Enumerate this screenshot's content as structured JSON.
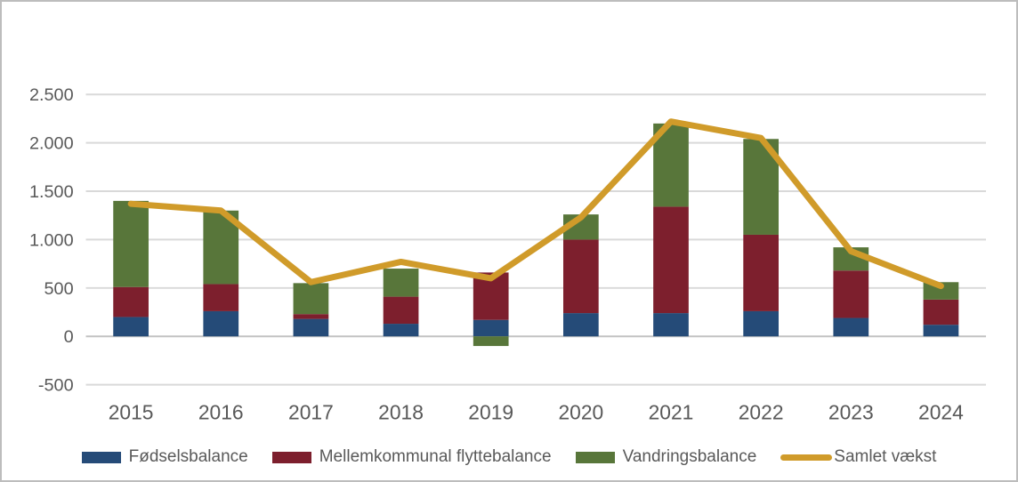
{
  "chart_data": {
    "type": "bar",
    "subtype": "stacked-column-with-line-overlay",
    "title": "",
    "xlabel": "",
    "ylabel": "",
    "categories": [
      "2015",
      "2016",
      "2017",
      "2018",
      "2019",
      "2020",
      "2021",
      "2022",
      "2023",
      "2024"
    ],
    "series": [
      {
        "name": "Fødselsbalance",
        "kind": "bar",
        "color": "#254b78",
        "values": [
          200,
          260,
          180,
          130,
          170,
          240,
          240,
          260,
          190,
          120
        ]
      },
      {
        "name": "Mellemkommunal flyttebalance",
        "kind": "bar",
        "color": "#7d1f2d",
        "values": [
          310,
          280,
          50,
          280,
          490,
          760,
          1100,
          790,
          490,
          260
        ]
      },
      {
        "name": "Vandringsbalance",
        "kind": "bar",
        "color": "#58763a",
        "values": [
          890,
          760,
          320,
          290,
          -100,
          260,
          860,
          990,
          240,
          180
        ]
      },
      {
        "name": "Samlet vækst",
        "kind": "line",
        "color": "#d09b2a",
        "values": [
          1370,
          1300,
          560,
          770,
          600,
          1230,
          2220,
          2050,
          880,
          520
        ]
      }
    ],
    "stack_totals": [
      1400,
      1300,
      550,
      700,
      560,
      1260,
      2200,
      2040,
      920,
      560
    ],
    "y_axis": {
      "min": -500,
      "max": 2500,
      "step": 500,
      "tick_labels": [
        "-500",
        "0",
        "500",
        "1.000",
        "1.500",
        "2.000",
        "2.500"
      ]
    },
    "grid": true,
    "gridline_color": "#d9d9d9",
    "axis_text_color": "#595959",
    "legend_position": "bottom"
  }
}
